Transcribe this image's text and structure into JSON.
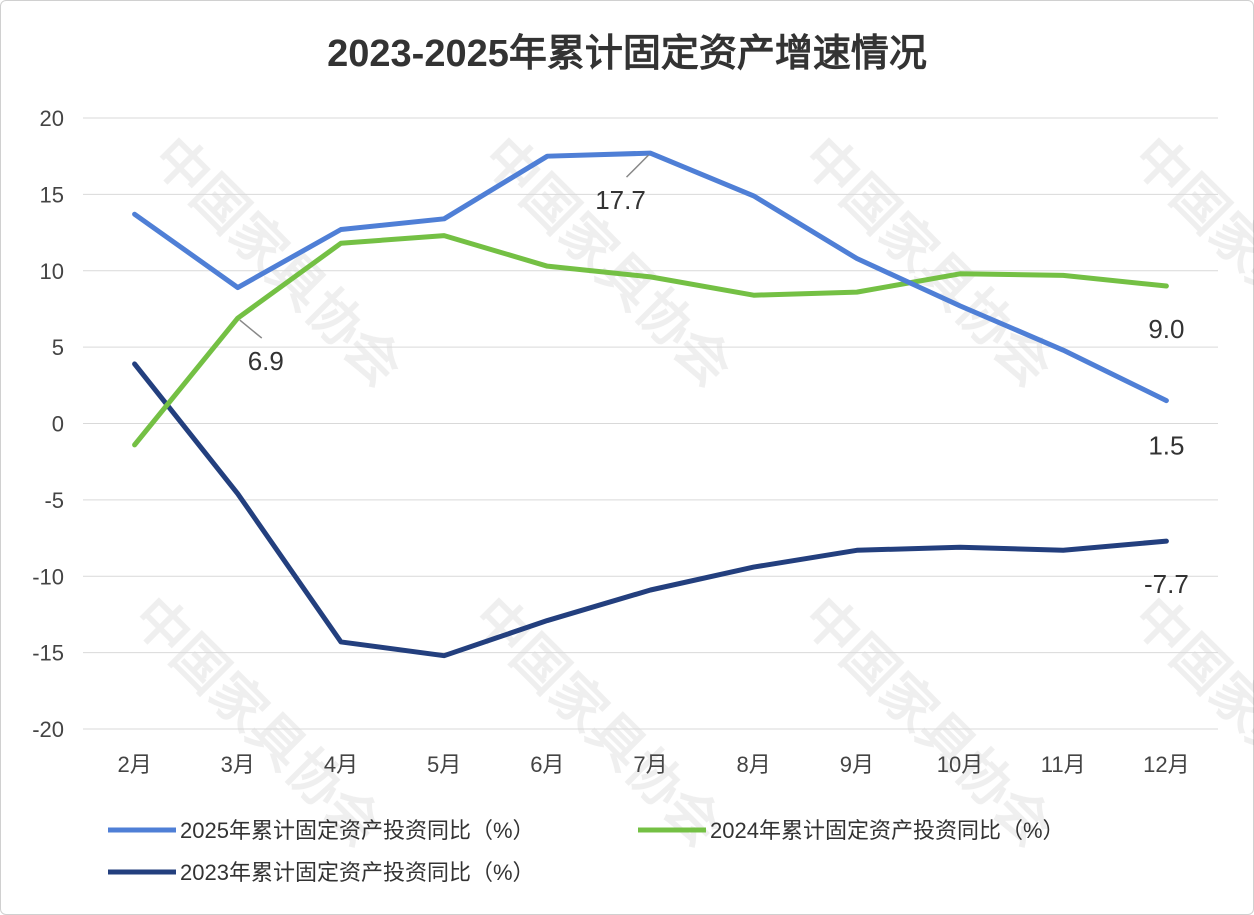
{
  "watermark": "中国家具协会 CHINA NATIONAL FURNITURE ASSOCIATION",
  "chart_data": {
    "type": "line",
    "title": "2023-2025年累计固定资产增速情况",
    "xlabel": "",
    "ylabel": "",
    "categories": [
      "2月",
      "3月",
      "4月",
      "5月",
      "6月",
      "7月",
      "8月",
      "9月",
      "10月",
      "11月",
      "12月"
    ],
    "ylim": [
      -20,
      20
    ],
    "yticks": [
      20,
      15,
      10,
      5,
      0,
      -5,
      -10,
      -15,
      -20
    ],
    "grid": true,
    "legend_position": "bottom",
    "series": [
      {
        "name": "2025年累计固定资产投资同比（%）",
        "color": "#4f7fd6",
        "values": [
          13.7,
          8.9,
          12.7,
          13.4,
          17.5,
          17.7,
          14.9,
          10.8,
          7.7,
          4.8,
          1.5
        ]
      },
      {
        "name": "2024年累计固定资产投资同比（%）",
        "color": "#74c044",
        "values": [
          -1.4,
          6.9,
          11.8,
          12.3,
          10.3,
          9.6,
          8.4,
          8.6,
          9.8,
          9.7,
          9.0
        ]
      },
      {
        "name": "2023年累计固定资产投资同比（%）",
        "color": "#233f7e",
        "values": [
          3.9,
          -4.6,
          -14.3,
          -15.2,
          -12.9,
          -10.9,
          -9.4,
          -8.3,
          -8.1,
          -8.3,
          -7.7
        ]
      }
    ],
    "annotations": [
      {
        "series": 0,
        "index": 5,
        "text": "17.7"
      },
      {
        "series": 0,
        "index": 10,
        "text": "1.5"
      },
      {
        "series": 1,
        "index": 1,
        "text": "6.9"
      },
      {
        "series": 1,
        "index": 10,
        "text": "9.0"
      },
      {
        "series": 2,
        "index": 10,
        "text": "-7.7"
      }
    ]
  }
}
